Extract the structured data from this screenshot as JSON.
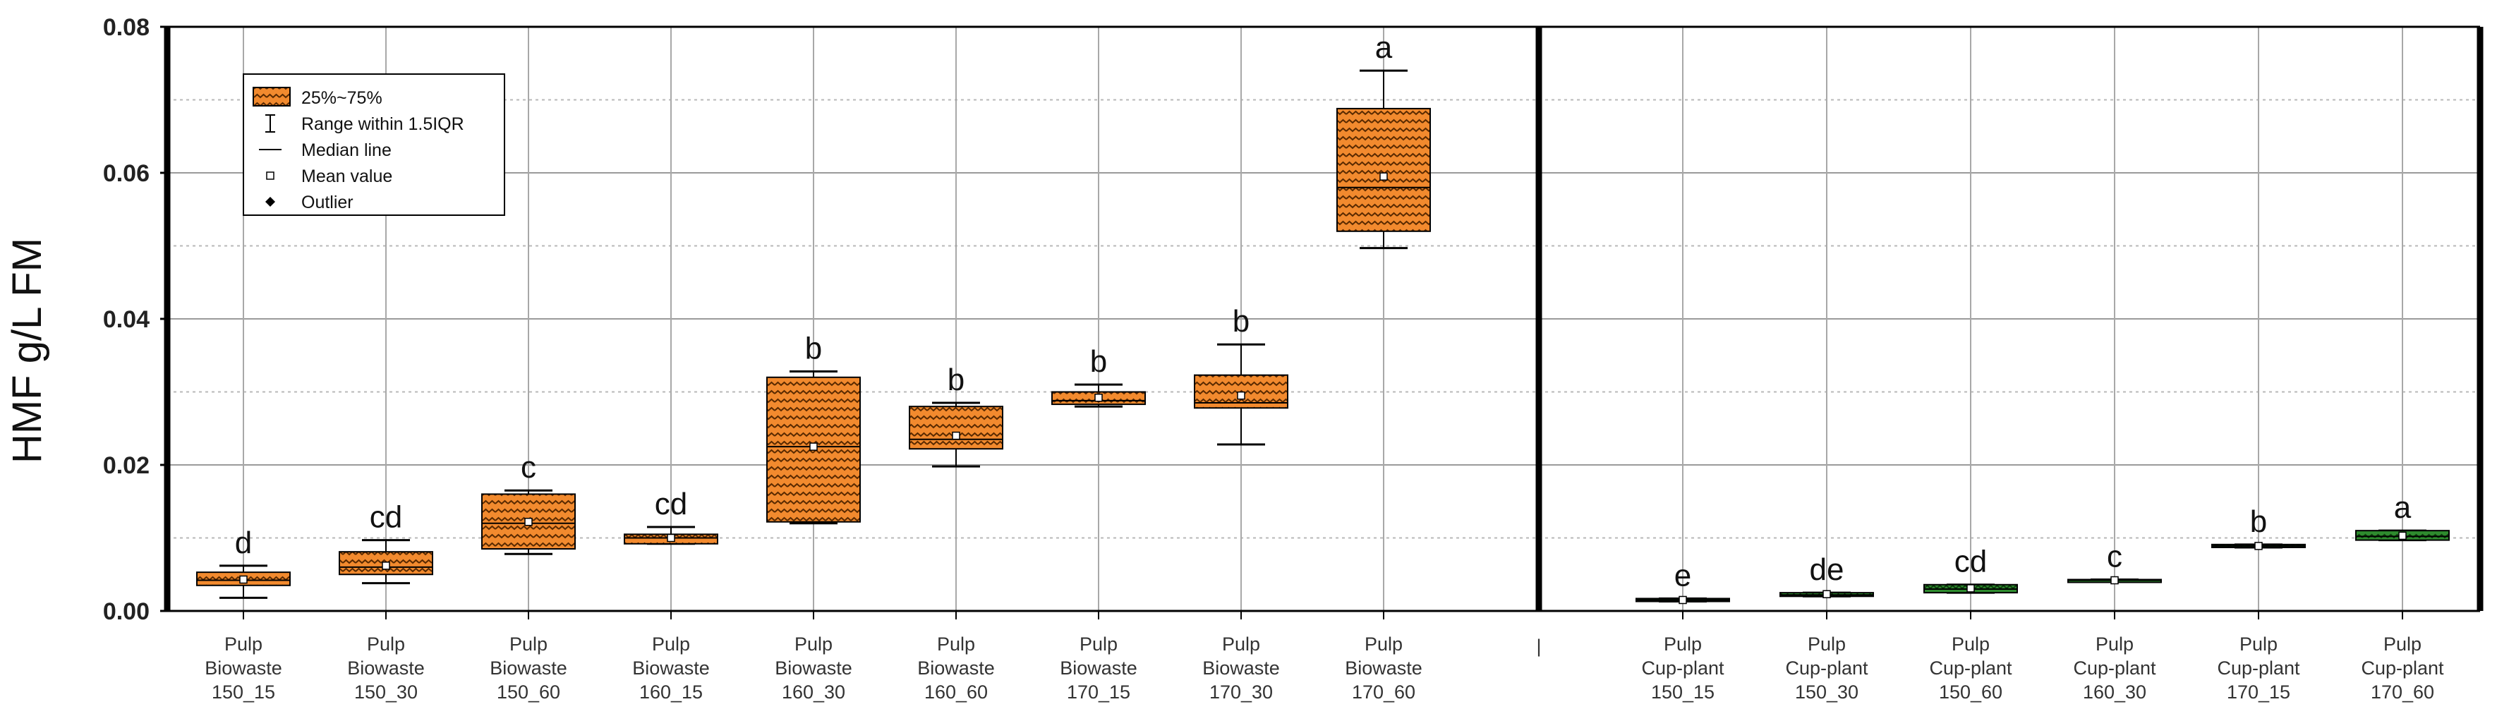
{
  "chart_data": {
    "type": "box",
    "ylabel": "HMF g/L FM",
    "ylim": [
      0,
      0.08
    ],
    "yticks": [
      "0.00",
      "0.02",
      "0.04",
      "0.06",
      "0.08"
    ],
    "grid": true,
    "legend_position": "top-left",
    "legend": {
      "items": [
        {
          "symbol": "box",
          "label": "25%~75%"
        },
        {
          "symbol": "whisker",
          "label": "Range within 1.5IQR"
        },
        {
          "symbol": "median",
          "label": "Median line"
        },
        {
          "symbol": "mean",
          "label": "Mean value"
        },
        {
          "symbol": "outlier",
          "label": "Outlier"
        }
      ]
    },
    "separator_tick_label": "|",
    "colors": {
      "biowaste": "#F28A2E",
      "cupplant": "#2E8B2E"
    },
    "groups": [
      {
        "name": "Biowaste",
        "color": "#F28A2E",
        "boxes": [
          {
            "label": [
              "Pulp",
              "Biowaste",
              "150_15"
            ],
            "q1": 0.0035,
            "median": 0.0042,
            "q3": 0.0053,
            "mean": 0.0043,
            "whisker_low": 0.0018,
            "whisker_high": 0.0062,
            "letter": "d"
          },
          {
            "label": [
              "Pulp",
              "Biowaste",
              "150_30"
            ],
            "q1": 0.005,
            "median": 0.006,
            "q3": 0.0081,
            "mean": 0.0062,
            "whisker_low": 0.0038,
            "whisker_high": 0.0097,
            "letter": "cd"
          },
          {
            "label": [
              "Pulp",
              "Biowaste",
              "150_60"
            ],
            "q1": 0.0085,
            "median": 0.012,
            "q3": 0.016,
            "mean": 0.0122,
            "whisker_low": 0.0078,
            "whisker_high": 0.0165,
            "letter": "c"
          },
          {
            "label": [
              "Pulp",
              "Biowaste",
              "160_15"
            ],
            "q1": 0.0092,
            "median": 0.01,
            "q3": 0.0105,
            "mean": 0.01,
            "whisker_low": 0.0092,
            "whisker_high": 0.0115,
            "letter": "cd"
          },
          {
            "label": [
              "Pulp",
              "Biowaste",
              "160_30"
            ],
            "q1": 0.0122,
            "median": 0.0225,
            "q3": 0.032,
            "mean": 0.0225,
            "whisker_low": 0.012,
            "whisker_high": 0.0328,
            "letter": "b"
          },
          {
            "label": [
              "Pulp",
              "Biowaste",
              "160_60"
            ],
            "q1": 0.0222,
            "median": 0.0235,
            "q3": 0.028,
            "mean": 0.024,
            "whisker_low": 0.0198,
            "whisker_high": 0.0285,
            "letter": "b"
          },
          {
            "label": [
              "Pulp",
              "Biowaste",
              "170_15"
            ],
            "q1": 0.0283,
            "median": 0.0288,
            "q3": 0.03,
            "mean": 0.0292,
            "whisker_low": 0.028,
            "whisker_high": 0.031,
            "letter": "b"
          },
          {
            "label": [
              "Pulp",
              "Biowaste",
              "170_30"
            ],
            "q1": 0.0278,
            "median": 0.0285,
            "q3": 0.0323,
            "mean": 0.0295,
            "whisker_low": 0.0228,
            "whisker_high": 0.0365,
            "letter": "b"
          },
          {
            "label": [
              "Pulp",
              "Biowaste",
              "170_60"
            ],
            "q1": 0.052,
            "median": 0.058,
            "q3": 0.0688,
            "mean": 0.0595,
            "whisker_low": 0.0497,
            "whisker_high": 0.074,
            "letter": "a"
          }
        ]
      },
      {
        "name": "Cup-plant",
        "color": "#2E8B2E",
        "boxes": [
          {
            "label": [
              "Pulp",
              "Cup-plant",
              "150_15"
            ],
            "q1": 0.0013,
            "median": 0.0015,
            "q3": 0.0017,
            "mean": 0.0015,
            "whisker_low": 0.0013,
            "whisker_high": 0.0017,
            "letter": "e"
          },
          {
            "label": [
              "Pulp",
              "Cup-plant",
              "150_30"
            ],
            "q1": 0.002,
            "median": 0.0022,
            "q3": 0.0025,
            "mean": 0.0023,
            "whisker_low": 0.002,
            "whisker_high": 0.0025,
            "letter": "de"
          },
          {
            "label": [
              "Pulp",
              "Cup-plant",
              "150_60"
            ],
            "q1": 0.0025,
            "median": 0.003,
            "q3": 0.0036,
            "mean": 0.0031,
            "whisker_low": 0.0025,
            "whisker_high": 0.0036,
            "letter": "cd"
          },
          {
            "label": [
              "Pulp",
              "Cup-plant",
              "160_30"
            ],
            "q1": 0.0041,
            "median": 0.0042,
            "q3": 0.0043,
            "mean": 0.0042,
            "whisker_low": 0.0041,
            "whisker_high": 0.0043,
            "letter": "c"
          },
          {
            "label": [
              "Pulp",
              "Cup-plant",
              "170_15"
            ],
            "q1": 0.0087,
            "median": 0.0089,
            "q3": 0.0091,
            "mean": 0.0089,
            "whisker_low": 0.0087,
            "whisker_high": 0.0091,
            "letter": "b"
          },
          {
            "label": [
              "Pulp",
              "Cup-plant",
              "170_60"
            ],
            "q1": 0.0097,
            "median": 0.0102,
            "q3": 0.011,
            "mean": 0.0103,
            "whisker_low": 0.0097,
            "whisker_high": 0.011,
            "letter": "a"
          }
        ]
      }
    ]
  }
}
